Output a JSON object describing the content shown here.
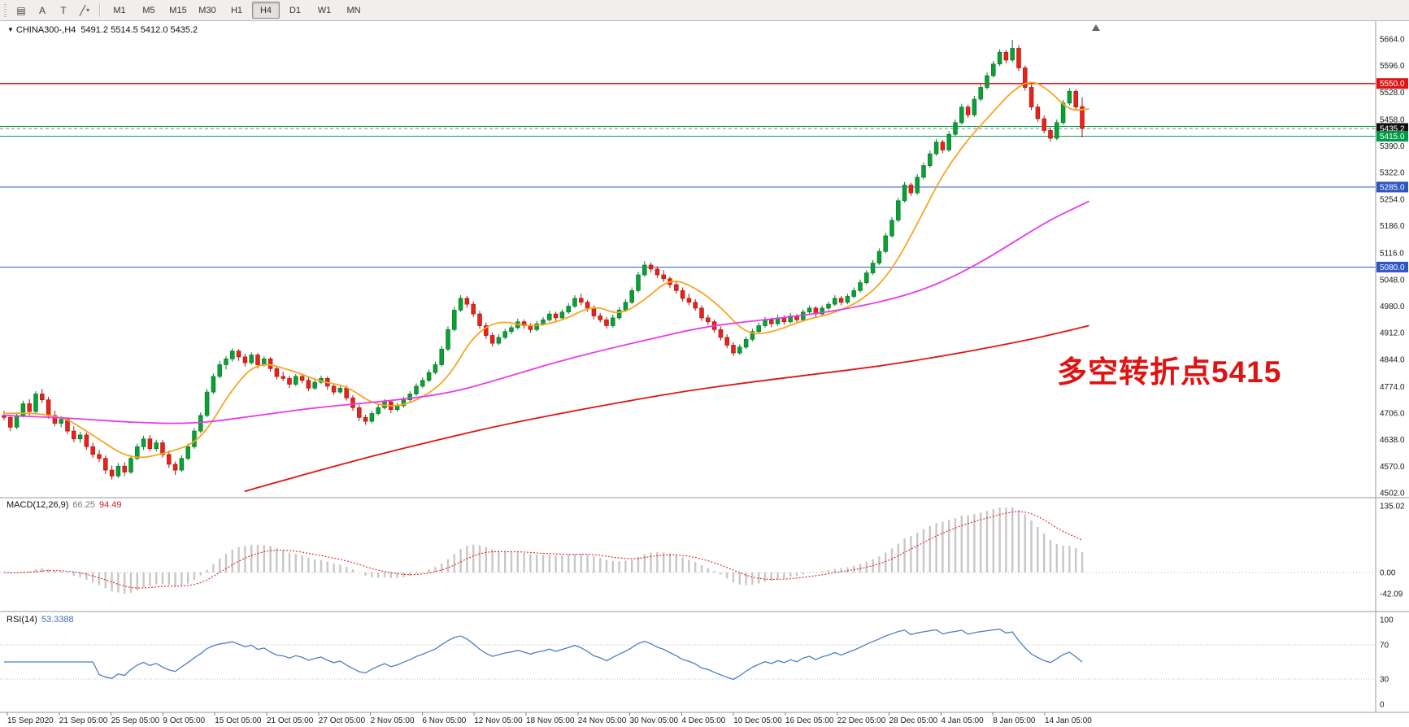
{
  "toolbar": {
    "tools": [
      {
        "name": "charts-list",
        "glyph": "▤"
      },
      {
        "name": "text-label",
        "glyph": "A"
      },
      {
        "name": "text-tool",
        "glyph": "T"
      },
      {
        "name": "trendline",
        "glyph": "╱",
        "dropdown": "▾"
      }
    ],
    "timeframes": [
      "M1",
      "M5",
      "M15",
      "M30",
      "H1",
      "H4",
      "D1",
      "W1",
      "MN"
    ],
    "active_timeframe": "H4"
  },
  "chart": {
    "header_marker": "▼",
    "symbol": "CHINA300-,H4",
    "ohlc": "5491.2 5514.5 5412.0 5435.2",
    "annotation": "多空转折点5415",
    "annotation_color": "#e01212"
  },
  "indicators": {
    "macd": {
      "name": "MACD(12,26,9)",
      "value_main": "66.25",
      "value_signal": "94.49",
      "axis": [
        "135.02",
        "0.00",
        "-42.09"
      ],
      "histogram_color": "#c7c7c7",
      "signal_color": "#e02020"
    },
    "rsi": {
      "name": "RSI(14)",
      "value": "53.3388",
      "axis": [
        "100",
        "70",
        "30",
        "0"
      ],
      "line_color": "#4b80c0",
      "levels": [
        70,
        30
      ]
    }
  },
  "chart_data": {
    "type": "candlestick",
    "symbol": "CHINA300",
    "timeframe": "H4",
    "ylim": [
      4502,
      5664
    ],
    "y_ticks": [
      "5664.0",
      "5596.0",
      "5528.0",
      "5458.0",
      "5390.0",
      "5322.0",
      "5254.0",
      "5186.0",
      "5116.0",
      "5048.0",
      "4980.0",
      "4912.0",
      "4844.0",
      "4774.0",
      "4706.0",
      "4638.0",
      "4570.0",
      "4502.0"
    ],
    "x_ticks": [
      "15 Sep 2020",
      "21 Sep 05:00",
      "25 Sep 05:00",
      "9 Oct 05:00",
      "15 Oct 05:00",
      "21 Oct 05:00",
      "27 Oct 05:00",
      "2 Nov 05:00",
      "6 Nov 05:00",
      "12 Nov 05:00",
      "18 Nov 05:00",
      "24 Nov 05:00",
      "30 Nov 05:00",
      "4 Dec 05:00",
      "10 Dec 05:00",
      "16 Dec 05:00",
      "22 Dec 05:00",
      "28 Dec 05:00",
      "4 Jan 05:00",
      "8 Jan 05:00",
      "14 Jan 05:00"
    ],
    "hlines": [
      {
        "price": 5550,
        "color": "#f01414",
        "dash": ""
      },
      {
        "price": 5440,
        "color": "#00a24a",
        "dash": ""
      },
      {
        "price": 5415,
        "color": "#00a24a",
        "dash": ""
      },
      {
        "price": 5435.2,
        "color": "#808080",
        "dash": "4 3"
      },
      {
        "price": 5285,
        "color": "#3a5bc7",
        "dash": ""
      },
      {
        "price": 5080,
        "color": "#3a5bc7",
        "dash": ""
      }
    ],
    "price_tags": [
      {
        "label": "5550.0",
        "price": 5550,
        "bg": "#e01212"
      },
      {
        "label": "5435.2",
        "price": 5435.2,
        "bg": "#111111"
      },
      {
        "label": "5415.0",
        "price": 5415,
        "bg": "#009a46"
      },
      {
        "label": "5285.0",
        "price": 5285,
        "bg": "#2f55c0"
      },
      {
        "label": "5080.0",
        "price": 5080,
        "bg": "#2f55c0"
      }
    ],
    "colors": {
      "up": "#0aa036",
      "up_border": "#067a26",
      "down": "#e8231a",
      "down_border": "#a81510"
    },
    "candles": [
      [
        4700,
        4712,
        4688,
        4695
      ],
      [
        4695,
        4702,
        4660,
        4670
      ],
      [
        4670,
        4708,
        4665,
        4700
      ],
      [
        4700,
        4738,
        4695,
        4730
      ],
      [
        4730,
        4742,
        4700,
        4710
      ],
      [
        4710,
        4762,
        4705,
        4755
      ],
      [
        4755,
        4768,
        4732,
        4740
      ],
      [
        4740,
        4748,
        4692,
        4700
      ],
      [
        4700,
        4712,
        4672,
        4680
      ],
      [
        4680,
        4698,
        4670,
        4690
      ],
      [
        4690,
        4695,
        4652,
        4660
      ],
      [
        4660,
        4672,
        4632,
        4640
      ],
      [
        4640,
        4658,
        4630,
        4650
      ],
      [
        4650,
        4656,
        4612,
        4620
      ],
      [
        4620,
        4630,
        4592,
        4600
      ],
      [
        4600,
        4612,
        4580,
        4590
      ],
      [
        4590,
        4598,
        4550,
        4560
      ],
      [
        4560,
        4572,
        4536,
        4545
      ],
      [
        4545,
        4578,
        4540,
        4570
      ],
      [
        4570,
        4580,
        4545,
        4555
      ],
      [
        4555,
        4598,
        4550,
        4590
      ],
      [
        4590,
        4628,
        4585,
        4620
      ],
      [
        4620,
        4648,
        4612,
        4640
      ],
      [
        4640,
        4650,
        4608,
        4615
      ],
      [
        4615,
        4638,
        4608,
        4630
      ],
      [
        4630,
        4638,
        4592,
        4600
      ],
      [
        4600,
        4610,
        4566,
        4575
      ],
      [
        4575,
        4582,
        4548,
        4560
      ],
      [
        4560,
        4598,
        4555,
        4590
      ],
      [
        4590,
        4628,
        4585,
        4620
      ],
      [
        4620,
        4668,
        4615,
        4660
      ],
      [
        4660,
        4708,
        4655,
        4700
      ],
      [
        4700,
        4768,
        4695,
        4760
      ],
      [
        4760,
        4808,
        4755,
        4800
      ],
      [
        4800,
        4840,
        4795,
        4830
      ],
      [
        4830,
        4852,
        4818,
        4845
      ],
      [
        4845,
        4872,
        4838,
        4865
      ],
      [
        4865,
        4870,
        4840,
        4850
      ],
      [
        4850,
        4858,
        4825,
        4835
      ],
      [
        4835,
        4862,
        4830,
        4855
      ],
      [
        4855,
        4860,
        4820,
        4830
      ],
      [
        4830,
        4852,
        4825,
        4845
      ],
      [
        4845,
        4850,
        4812,
        4820
      ],
      [
        4820,
        4828,
        4792,
        4800
      ],
      [
        4800,
        4812,
        4788,
        4795
      ],
      [
        4795,
        4802,
        4770,
        4780
      ],
      [
        4780,
        4806,
        4775,
        4800
      ],
      [
        4800,
        4808,
        4782,
        4790
      ],
      [
        4790,
        4798,
        4762,
        4770
      ],
      [
        4770,
        4792,
        4765,
        4785
      ],
      [
        4785,
        4802,
        4780,
        4795
      ],
      [
        4795,
        4800,
        4766,
        4775
      ],
      [
        4775,
        4782,
        4752,
        4760
      ],
      [
        4760,
        4778,
        4755,
        4770
      ],
      [
        4770,
        4776,
        4738,
        4745
      ],
      [
        4745,
        4752,
        4712,
        4720
      ],
      [
        4720,
        4728,
        4686,
        4695
      ],
      [
        4695,
        4702,
        4676,
        4685
      ],
      [
        4685,
        4712,
        4680,
        4705
      ],
      [
        4705,
        4728,
        4700,
        4720
      ],
      [
        4720,
        4742,
        4715,
        4735
      ],
      [
        4735,
        4740,
        4706,
        4715
      ],
      [
        4715,
        4732,
        4710,
        4725
      ],
      [
        4725,
        4748,
        4720,
        4740
      ],
      [
        4740,
        4762,
        4735,
        4755
      ],
      [
        4755,
        4782,
        4750,
        4775
      ],
      [
        4775,
        4798,
        4770,
        4790
      ],
      [
        4790,
        4818,
        4785,
        4810
      ],
      [
        4810,
        4838,
        4805,
        4830
      ],
      [
        4830,
        4878,
        4825,
        4870
      ],
      [
        4870,
        4928,
        4865,
        4920
      ],
      [
        4920,
        4978,
        4915,
        4970
      ],
      [
        4970,
        5008,
        4965,
        5000
      ],
      [
        5000,
        5006,
        4976,
        4985
      ],
      [
        4985,
        4992,
        4952,
        4960
      ],
      [
        4960,
        4968,
        4922,
        4930
      ],
      [
        4930,
        4938,
        4896,
        4905
      ],
      [
        4905,
        4912,
        4876,
        4885
      ],
      [
        4885,
        4908,
        4880,
        4900
      ],
      [
        4900,
        4922,
        4895,
        4915
      ],
      [
        4915,
        4932,
        4908,
        4925
      ],
      [
        4925,
        4948,
        4920,
        4940
      ],
      [
        4940,
        4946,
        4922,
        4930
      ],
      [
        4930,
        4936,
        4912,
        4920
      ],
      [
        4920,
        4942,
        4915,
        4935
      ],
      [
        4935,
        4952,
        4930,
        4945
      ],
      [
        4945,
        4968,
        4940,
        4960
      ],
      [
        4960,
        4966,
        4942,
        4950
      ],
      [
        4950,
        4972,
        4945,
        4965
      ],
      [
        4965,
        4988,
        4960,
        4980
      ],
      [
        4980,
        5008,
        4975,
        5000
      ],
      [
        5000,
        5012,
        4982,
        4990
      ],
      [
        4990,
        4996,
        4966,
        4975
      ],
      [
        4975,
        4982,
        4946,
        4955
      ],
      [
        4955,
        4962,
        4938,
        4945
      ],
      [
        4945,
        4952,
        4922,
        4930
      ],
      [
        4930,
        4958,
        4925,
        4950
      ],
      [
        4950,
        4978,
        4945,
        4970
      ],
      [
        4970,
        4998,
        4965,
        4990
      ],
      [
        4990,
        5028,
        4985,
        5020
      ],
      [
        5020,
        5068,
        5015,
        5060
      ],
      [
        5060,
        5095,
        5055,
        5085
      ],
      [
        5085,
        5092,
        5066,
        5075
      ],
      [
        5075,
        5082,
        5052,
        5060
      ],
      [
        5060,
        5072,
        5042,
        5050
      ],
      [
        5050,
        5056,
        5026,
        5035
      ],
      [
        5035,
        5042,
        5012,
        5020
      ],
      [
        5020,
        5028,
        4992,
        5000
      ],
      [
        5000,
        5012,
        4982,
        4990
      ],
      [
        4990,
        4998,
        4968,
        4975
      ],
      [
        4975,
        4982,
        4942,
        4950
      ],
      [
        4950,
        4958,
        4932,
        4940
      ],
      [
        4940,
        4946,
        4912,
        4920
      ],
      [
        4920,
        4928,
        4892,
        4900
      ],
      [
        4900,
        4908,
        4872,
        4880
      ],
      [
        4880,
        4888,
        4852,
        4860
      ],
      [
        4860,
        4882,
        4855,
        4875
      ],
      [
        4875,
        4902,
        4870,
        4895
      ],
      [
        4895,
        4922,
        4890,
        4915
      ],
      [
        4915,
        4938,
        4910,
        4930
      ],
      [
        4930,
        4952,
        4925,
        4945
      ],
      [
        4945,
        4950,
        4926,
        4935
      ],
      [
        4935,
        4958,
        4930,
        4950
      ],
      [
        4950,
        4956,
        4932,
        4940
      ],
      [
        4940,
        4962,
        4935,
        4955
      ],
      [
        4955,
        4960,
        4936,
        4945
      ],
      [
        4945,
        4972,
        4940,
        4965
      ],
      [
        4965,
        4982,
        4960,
        4975
      ],
      [
        4975,
        4980,
        4952,
        4960
      ],
      [
        4960,
        4982,
        4955,
        4975
      ],
      [
        4975,
        4992,
        4970,
        4985
      ],
      [
        4985,
        5008,
        4980,
        5000
      ],
      [
        5000,
        5006,
        4982,
        4990
      ],
      [
        4990,
        5012,
        4985,
        5005
      ],
      [
        5005,
        5028,
        5000,
        5020
      ],
      [
        5020,
        5048,
        5015,
        5040
      ],
      [
        5040,
        5072,
        5035,
        5065
      ],
      [
        5065,
        5098,
        5060,
        5090
      ],
      [
        5090,
        5128,
        5085,
        5120
      ],
      [
        5120,
        5168,
        5115,
        5160
      ],
      [
        5160,
        5208,
        5155,
        5200
      ],
      [
        5200,
        5258,
        5195,
        5250
      ],
      [
        5250,
        5298,
        5245,
        5290
      ],
      [
        5290,
        5296,
        5262,
        5270
      ],
      [
        5270,
        5318,
        5265,
        5310
      ],
      [
        5310,
        5348,
        5305,
        5340
      ],
      [
        5340,
        5378,
        5335,
        5370
      ],
      [
        5370,
        5408,
        5365,
        5400
      ],
      [
        5400,
        5406,
        5372,
        5380
      ],
      [
        5380,
        5428,
        5375,
        5420
      ],
      [
        5420,
        5458,
        5415,
        5450
      ],
      [
        5450,
        5498,
        5445,
        5490
      ],
      [
        5490,
        5496,
        5462,
        5470
      ],
      [
        5470,
        5518,
        5465,
        5510
      ],
      [
        5510,
        5548,
        5505,
        5540
      ],
      [
        5540,
        5578,
        5535,
        5570
      ],
      [
        5570,
        5608,
        5565,
        5600
      ],
      [
        5600,
        5638,
        5595,
        5630
      ],
      [
        5630,
        5636,
        5602,
        5610
      ],
      [
        5610,
        5662,
        5605,
        5640
      ],
      [
        5640,
        5648,
        5582,
        5590
      ],
      [
        5590,
        5596,
        5532,
        5540
      ],
      [
        5540,
        5548,
        5482,
        5490
      ],
      [
        5490,
        5498,
        5452,
        5460
      ],
      [
        5460,
        5468,
        5422,
        5430
      ],
      [
        5430,
        5438,
        5402,
        5410
      ],
      [
        5410,
        5458,
        5405,
        5450
      ],
      [
        5450,
        5508,
        5445,
        5500
      ],
      [
        5500,
        5538,
        5495,
        5530
      ],
      [
        5530,
        5536,
        5482,
        5490
      ],
      [
        5491,
        5515,
        5412,
        5435
      ]
    ],
    "ma_fast": {
      "color": "#f5a623",
      "points": [
        [
          0,
          4705
        ],
        [
          8,
          4710
        ],
        [
          14,
          4650
        ],
        [
          20,
          4585
        ],
        [
          26,
          4605
        ],
        [
          31,
          4635
        ],
        [
          36,
          4770
        ],
        [
          40,
          4838
        ],
        [
          45,
          4818
        ],
        [
          50,
          4786
        ],
        [
          54,
          4776
        ],
        [
          58,
          4730
        ],
        [
          62,
          4722
        ],
        [
          66,
          4745
        ],
        [
          70,
          4795
        ],
        [
          74,
          4905
        ],
        [
          78,
          4945
        ],
        [
          83,
          4926
        ],
        [
          88,
          4942
        ],
        [
          93,
          4984
        ],
        [
          97,
          4956
        ],
        [
          101,
          4995
        ],
        [
          105,
          5052
        ],
        [
          109,
          5028
        ],
        [
          113,
          4978
        ],
        [
          117,
          4908
        ],
        [
          121,
          4912
        ],
        [
          126,
          4944
        ],
        [
          131,
          4962
        ],
        [
          136,
          5002
        ],
        [
          140,
          5072
        ],
        [
          144,
          5190
        ],
        [
          148,
          5318
        ],
        [
          152,
          5408
        ],
        [
          156,
          5478
        ],
        [
          159,
          5532
        ],
        [
          162,
          5560
        ],
        [
          165,
          5530
        ],
        [
          168,
          5480
        ],
        [
          171,
          5485
        ]
      ]
    },
    "ma_mid": {
      "color": "#e93be9",
      "points": [
        [
          0,
          4700
        ],
        [
          10,
          4694
        ],
        [
          20,
          4682
        ],
        [
          30,
          4678
        ],
        [
          40,
          4700
        ],
        [
          50,
          4722
        ],
        [
          60,
          4736
        ],
        [
          70,
          4756
        ],
        [
          78,
          4792
        ],
        [
          86,
          4832
        ],
        [
          94,
          4866
        ],
        [
          102,
          4896
        ],
        [
          110,
          4926
        ],
        [
          118,
          4942
        ],
        [
          126,
          4956
        ],
        [
          134,
          4976
        ],
        [
          142,
          5006
        ],
        [
          148,
          5042
        ],
        [
          154,
          5092
        ],
        [
          160,
          5152
        ],
        [
          165,
          5202
        ],
        [
          171,
          5248
        ]
      ]
    },
    "ma_slow": {
      "color": "#e01414",
      "points": [
        [
          38,
          4506
        ],
        [
          48,
          4552
        ],
        [
          58,
          4596
        ],
        [
          68,
          4636
        ],
        [
          78,
          4674
        ],
        [
          88,
          4706
        ],
        [
          98,
          4736
        ],
        [
          108,
          4764
        ],
        [
          118,
          4786
        ],
        [
          128,
          4806
        ],
        [
          138,
          4826
        ],
        [
          148,
          4852
        ],
        [
          158,
          4882
        ],
        [
          165,
          4906
        ],
        [
          171,
          4930
        ]
      ]
    }
  }
}
